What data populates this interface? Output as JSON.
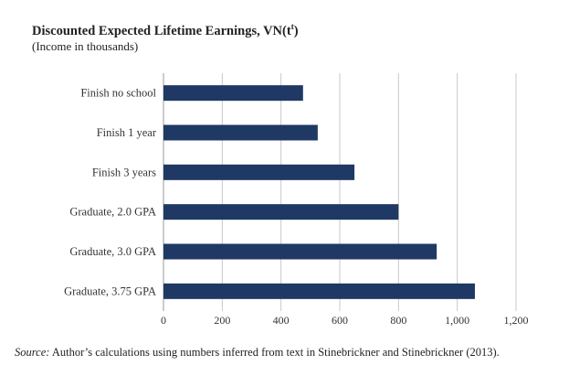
{
  "chart_data": {
    "type": "bar",
    "orientation": "horizontal",
    "title_main": "Discounted Expected Lifetime Earnings, VN(t",
    "title_sup": "t",
    "title_end": ")",
    "subtitle": "(Income in thousands)",
    "categories": [
      "Finish no school",
      "Finish 1 year",
      "Finish 3 years",
      "Graduate, 2.0 GPA",
      "Graduate, 3.0 GPA",
      "Graduate, 3.75 GPA"
    ],
    "values": [
      475,
      525,
      650,
      800,
      930,
      1060
    ],
    "xlim": [
      0,
      1200
    ],
    "x_ticks": [
      "0",
      "200",
      "400",
      "600",
      "800",
      "1,000",
      "1,200"
    ],
    "xlabel": "",
    "ylabel": "",
    "grid": "vertical",
    "bar_color": "#1f3864",
    "grid_color": "#c8c8c8",
    "source_label": "Source:",
    "source_text": " Author’s calculations using numbers inferred from text in Stinebrickner and Stinebrickner (2013)."
  }
}
